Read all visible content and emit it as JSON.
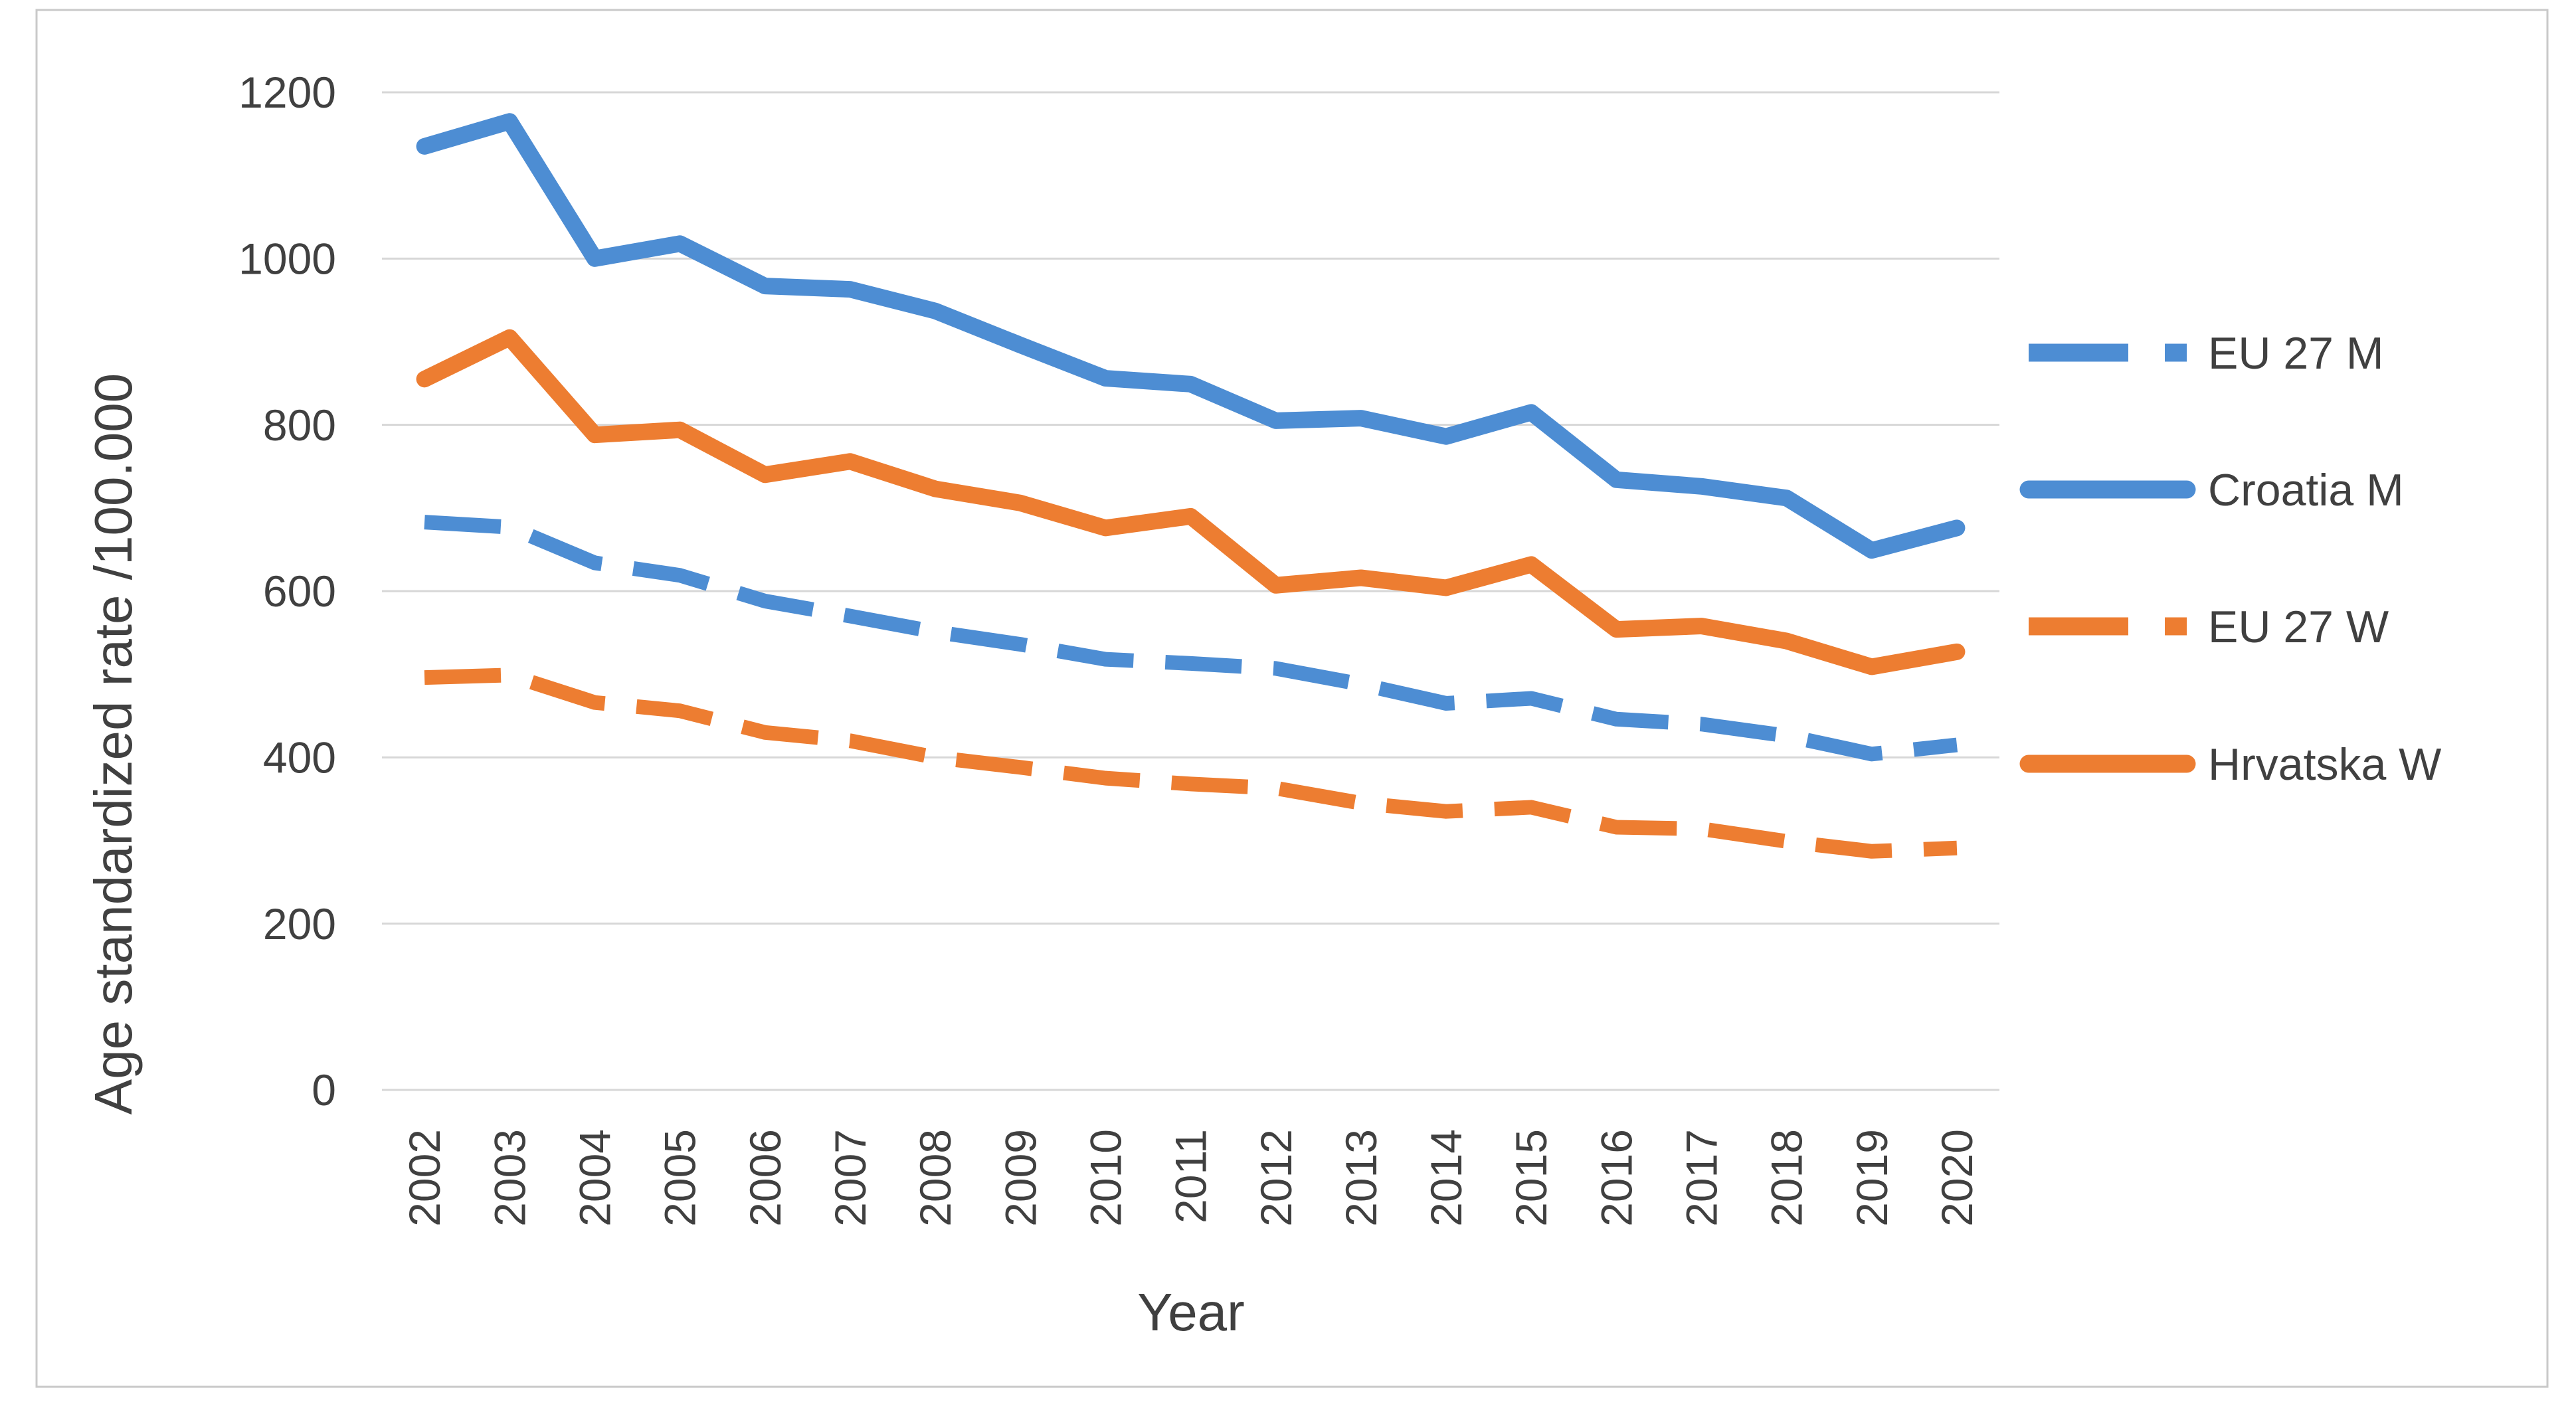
{
  "figure": {
    "background": "#ffffff",
    "border_color": "#c9c9c9",
    "gridline_color": "#d7d7d7",
    "text_color": "#404040"
  },
  "chart_data": {
    "type": "line",
    "title": "",
    "xlabel": "Year",
    "ylabel": "Age standardized rate /100.000",
    "x": [
      2002,
      2003,
      2004,
      2005,
      2006,
      2007,
      2008,
      2009,
      2010,
      2011,
      2012,
      2013,
      2014,
      2015,
      2016,
      2017,
      2018,
      2019,
      2020
    ],
    "ylim": [
      0,
      1200
    ],
    "ytick_step": 200,
    "grid": true,
    "legend_position": "right",
    "series": [
      {
        "name": "EU 27 M",
        "color": "#4d8dd3",
        "style": "dashed",
        "values": [
          683,
          677,
          634,
          619,
          588,
          570,
          551,
          536,
          518,
          513,
          507,
          488,
          465,
          471,
          446,
          440,
          426,
          404,
          415
        ]
      },
      {
        "name": "Croatia M",
        "color": "#4d8dd3",
        "style": "solid",
        "values": [
          1135,
          1165,
          1000,
          1018,
          967,
          963,
          937,
          896,
          856,
          849,
          805,
          808,
          786,
          815,
          734,
          726,
          712,
          649,
          676
        ]
      },
      {
        "name": "EU 27 W",
        "color": "#ed7d31",
        "style": "dashed",
        "values": [
          496,
          499,
          466,
          456,
          430,
          420,
          400,
          388,
          375,
          368,
          363,
          345,
          335,
          340,
          316,
          314,
          299,
          287,
          291
        ]
      },
      {
        "name": "Hrvatska W",
        "color": "#ed7d31",
        "style": "solid",
        "values": [
          855,
          905,
          788,
          794,
          740,
          756,
          723,
          706,
          676,
          690,
          607,
          616,
          604,
          632,
          554,
          558,
          540,
          509,
          527
        ]
      }
    ]
  }
}
